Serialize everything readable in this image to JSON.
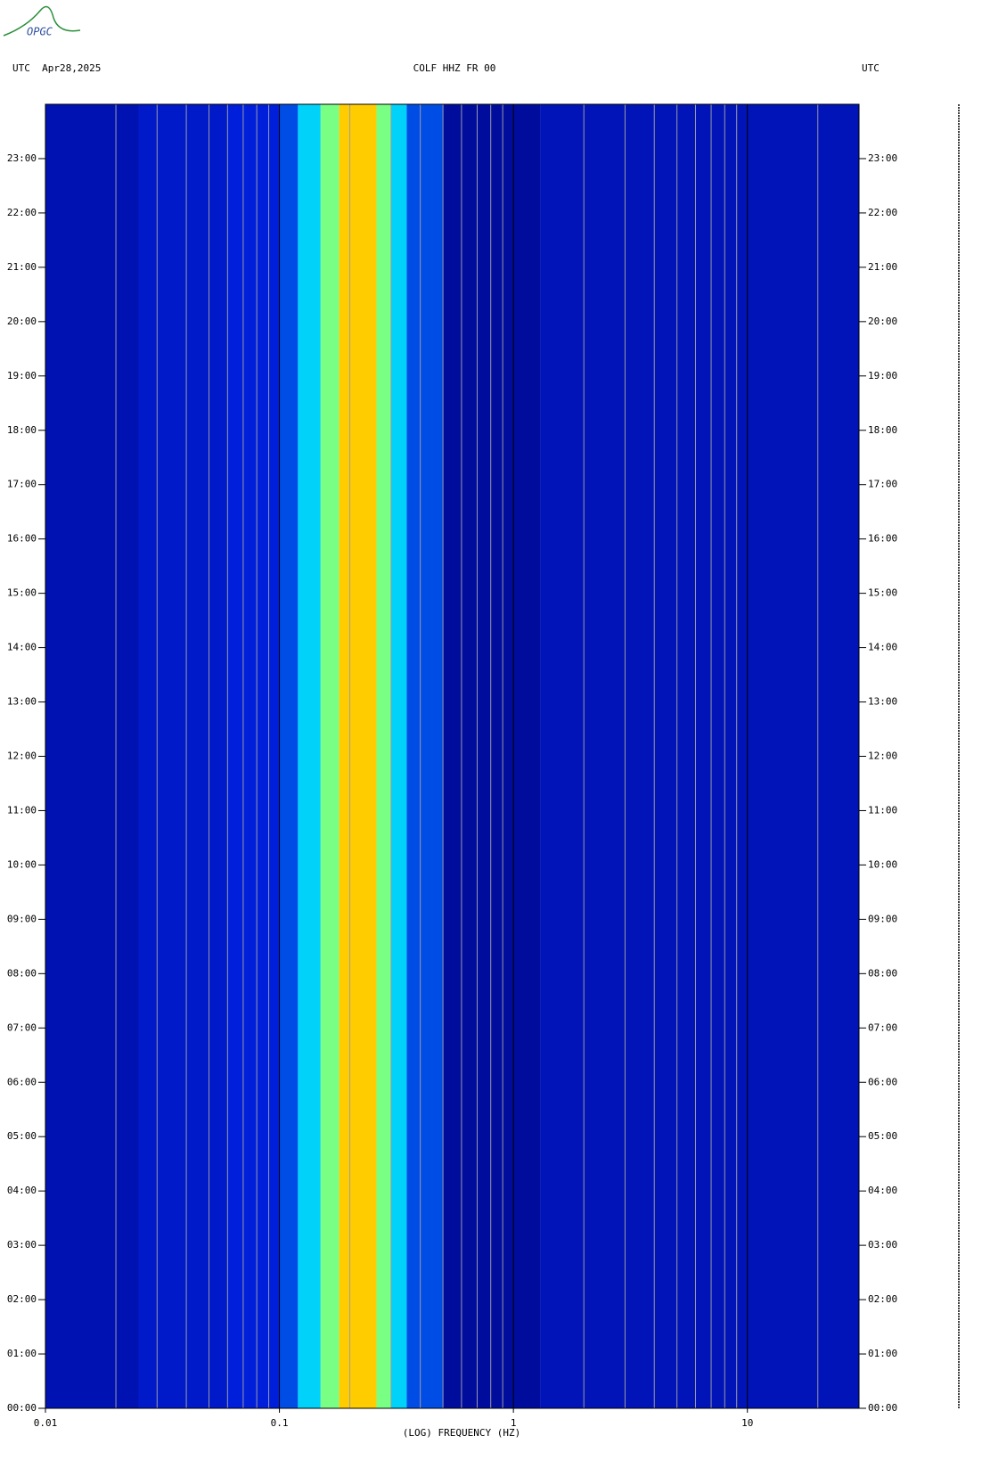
{
  "logo": "OPGC",
  "chart_data": {
    "type": "spectrogram",
    "title": "COLF HHZ FR 00",
    "left_header": "UTC  Apr28,2025",
    "right_header": "UTC",
    "xlabel": "(LOG) FREQUENCY (HZ)",
    "xscale": "log",
    "xlim": [
      0.01,
      30
    ],
    "xticks": [
      0.01,
      0.1,
      1,
      10
    ],
    "xgrid": [
      0.02,
      0.03,
      0.04,
      0.05,
      0.06,
      0.07,
      0.08,
      0.09,
      0.2,
      0.3,
      0.4,
      0.5,
      0.6,
      0.7,
      0.8,
      0.9,
      2,
      3,
      4,
      5,
      6,
      7,
      8,
      9,
      20
    ],
    "ylim": [
      0,
      24
    ],
    "yticks": [
      {
        "value": 0,
        "label": "00:00"
      },
      {
        "value": 1,
        "label": "01:00"
      },
      {
        "value": 2,
        "label": "02:00"
      },
      {
        "value": 3,
        "label": "03:00"
      },
      {
        "value": 4,
        "label": "04:00"
      },
      {
        "value": 5,
        "label": "05:00"
      },
      {
        "value": 6,
        "label": "06:00"
      },
      {
        "value": 7,
        "label": "07:00"
      },
      {
        "value": 8,
        "label": "08:00"
      },
      {
        "value": 9,
        "label": "09:00"
      },
      {
        "value": 10,
        "label": "10:00"
      },
      {
        "value": 11,
        "label": "11:00"
      },
      {
        "value": 12,
        "label": "12:00"
      },
      {
        "value": 13,
        "label": "13:00"
      },
      {
        "value": 14,
        "label": "14:00"
      },
      {
        "value": 15,
        "label": "15:00"
      },
      {
        "value": 16,
        "label": "16:00"
      },
      {
        "value": 17,
        "label": "17:00"
      },
      {
        "value": 18,
        "label": "18:00"
      },
      {
        "value": 19,
        "label": "19:00"
      },
      {
        "value": 20,
        "label": "20:00"
      },
      {
        "value": 21,
        "label": "21:00"
      },
      {
        "value": 22,
        "label": "22:00"
      },
      {
        "value": 23,
        "label": "23:00"
      }
    ],
    "bins": [
      0.01,
      0.025,
      0.06,
      0.1,
      0.12,
      0.15,
      0.18,
      0.26,
      0.3,
      0.35,
      0.5,
      1.3,
      30
    ],
    "levels": [
      0.15,
      0.2,
      0.24,
      0.3,
      0.45,
      0.62,
      0.8,
      0.62,
      0.45,
      0.3,
      0.1,
      0.16
    ],
    "colormap": [
      "#00006e",
      "#0020e0",
      "#00ffff",
      "#ffff00",
      "#ff0000"
    ]
  }
}
